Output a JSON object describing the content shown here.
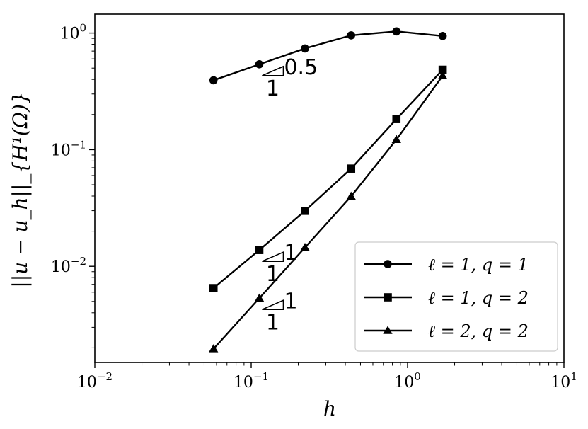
{
  "chart_data": {
    "type": "line",
    "xscale": "log",
    "yscale": "log",
    "xlim": [
      0.01,
      10
    ],
    "ylim": [
      0.0015,
      1.45
    ],
    "xlabel": "h",
    "ylabel": "||u − u_h||_{H¹(Ω)}",
    "x_ticks": [
      {
        "value": 0.01,
        "base": "10",
        "exp": "−2"
      },
      {
        "value": 0.1,
        "base": "10",
        "exp": "−1"
      },
      {
        "value": 1,
        "base": "10",
        "exp": "0"
      },
      {
        "value": 10,
        "base": "10",
        "exp": "1"
      }
    ],
    "y_ticks": [
      {
        "value": 0.01,
        "base": "10",
        "exp": "−2"
      },
      {
        "value": 0.1,
        "base": "10",
        "exp": "−1"
      },
      {
        "value": 1,
        "base": "10",
        "exp": "0"
      }
    ],
    "x": [
      0.0574,
      0.1127,
      0.2208,
      0.4355,
      0.8488,
      1.6772
    ],
    "series": [
      {
        "name": "ℓ = 1, q = 1",
        "marker": "circle",
        "values": [
          0.393,
          0.539,
          0.737,
          0.955,
          1.032,
          0.943
        ]
      },
      {
        "name": "ℓ = 1, q = 2",
        "marker": "square",
        "values": [
          0.0065,
          0.0138,
          0.0299,
          0.0688,
          0.183,
          0.484
        ]
      },
      {
        "name": "ℓ = 2, q = 2",
        "marker": "triangle",
        "values": [
          0.00196,
          0.00533,
          0.0145,
          0.0398,
          0.122,
          0.43
        ]
      }
    ],
    "slope_triangles": [
      {
        "run": "1",
        "rise": "0.5",
        "x": 0.1127,
        "y": 0.539
      },
      {
        "run": "1",
        "rise": "1",
        "x": 0.1127,
        "y": 0.0138
      },
      {
        "run": "1",
        "rise": "1",
        "x": 0.1127,
        "y": 0.00533
      }
    ],
    "legend_position": "lower-right",
    "grid": false,
    "color": "#000000"
  }
}
